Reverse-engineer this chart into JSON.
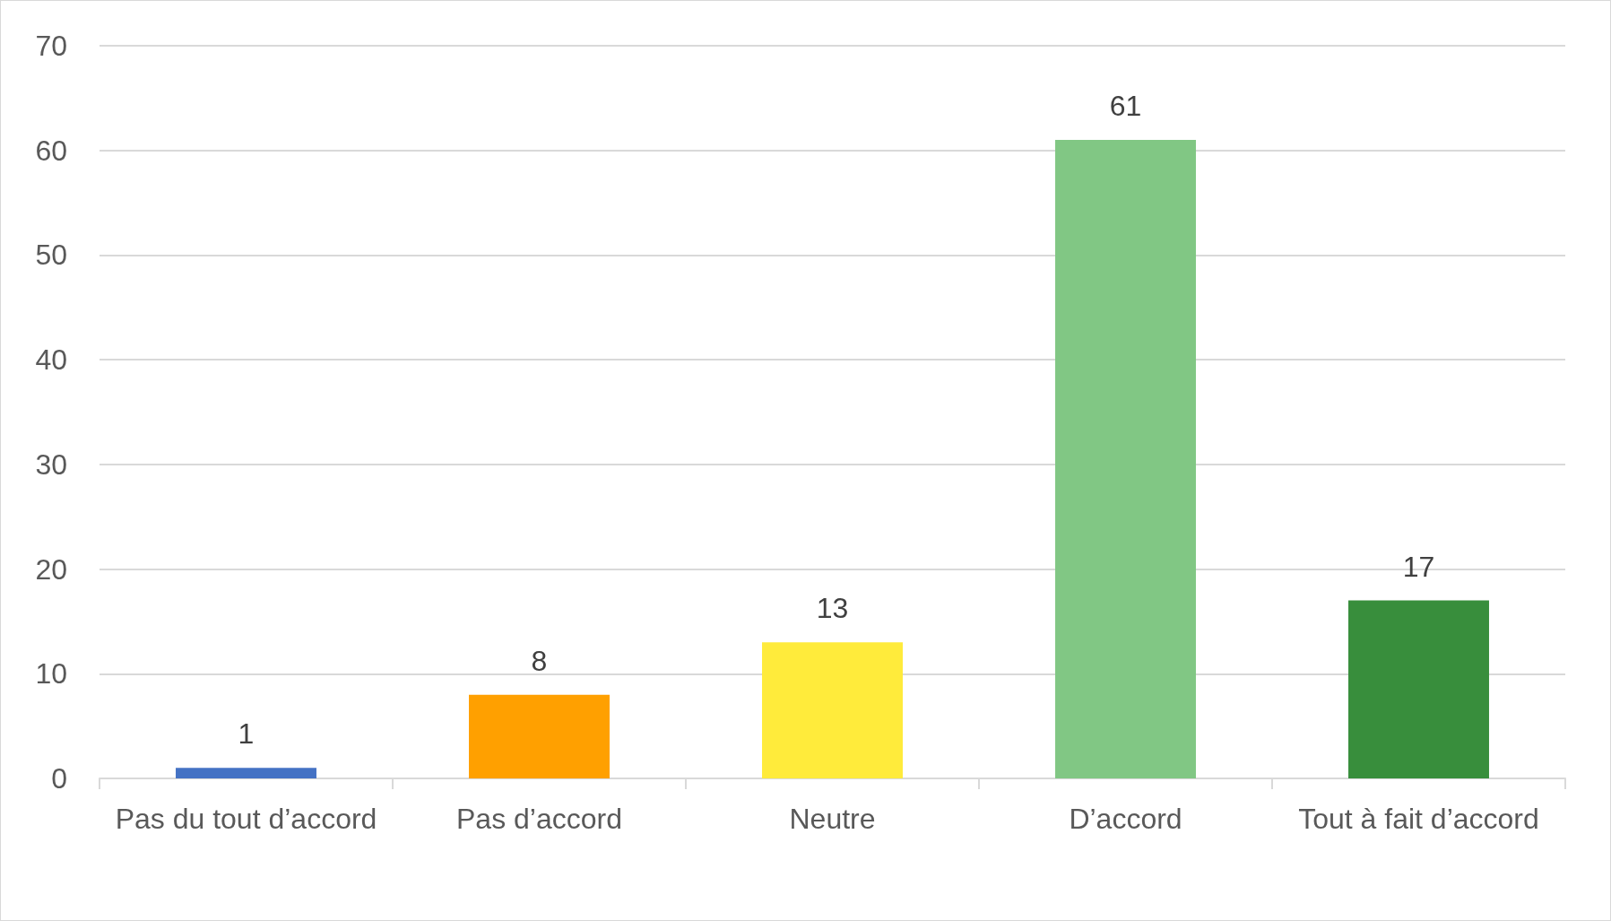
{
  "chart_data": {
    "type": "bar",
    "categories": [
      "Pas du tout d’accord",
      "Pas d’accord",
      "Neutre",
      "D’accord",
      "Tout à fait d’accord"
    ],
    "values": [
      1,
      8,
      13,
      61,
      17
    ],
    "colors": [
      "#4472c4",
      "#ffa000",
      "#ffeb3b",
      "#81c784",
      "#388e3c"
    ],
    "ylim": [
      0,
      70
    ],
    "yticks": [
      0,
      10,
      20,
      30,
      40,
      50,
      60,
      70
    ],
    "grid": "y",
    "data_labels": true
  }
}
